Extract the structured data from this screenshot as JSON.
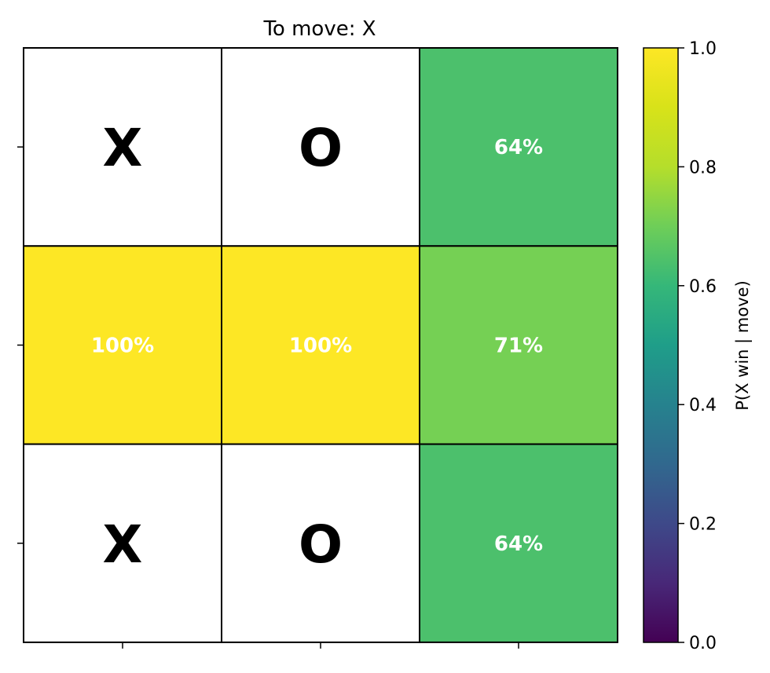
{
  "chart_data": {
    "type": "heatmap",
    "title": "To move: X",
    "rows": 3,
    "cols": 3,
    "cells": [
      [
        {
          "mark": "X",
          "value": null,
          "label": ""
        },
        {
          "mark": "O",
          "value": null,
          "label": ""
        },
        {
          "mark": "",
          "value": 0.64,
          "label": "64%"
        }
      ],
      [
        {
          "mark": "",
          "value": 1.0,
          "label": "100%"
        },
        {
          "mark": "",
          "value": 1.0,
          "label": "100%"
        },
        {
          "mark": "",
          "value": 0.71,
          "label": "71%"
        }
      ],
      [
        {
          "mark": "X",
          "value": null,
          "label": ""
        },
        {
          "mark": "O",
          "value": null,
          "label": ""
        },
        {
          "mark": "",
          "value": 0.64,
          "label": "64%"
        }
      ]
    ],
    "colorbar": {
      "label": "P(X win | move)",
      "range": [
        0.0,
        1.0
      ],
      "ticks": [
        0.0,
        0.2,
        0.4,
        0.6,
        0.8,
        1.0
      ],
      "tick_labels": [
        "0.0",
        "0.2",
        "0.4",
        "0.6",
        "0.8",
        "1.0"
      ],
      "colormap": "viridis"
    },
    "xticklabels": [
      "",
      "",
      ""
    ],
    "yticklabels": [
      "",
      "",
      ""
    ],
    "grid": true
  }
}
